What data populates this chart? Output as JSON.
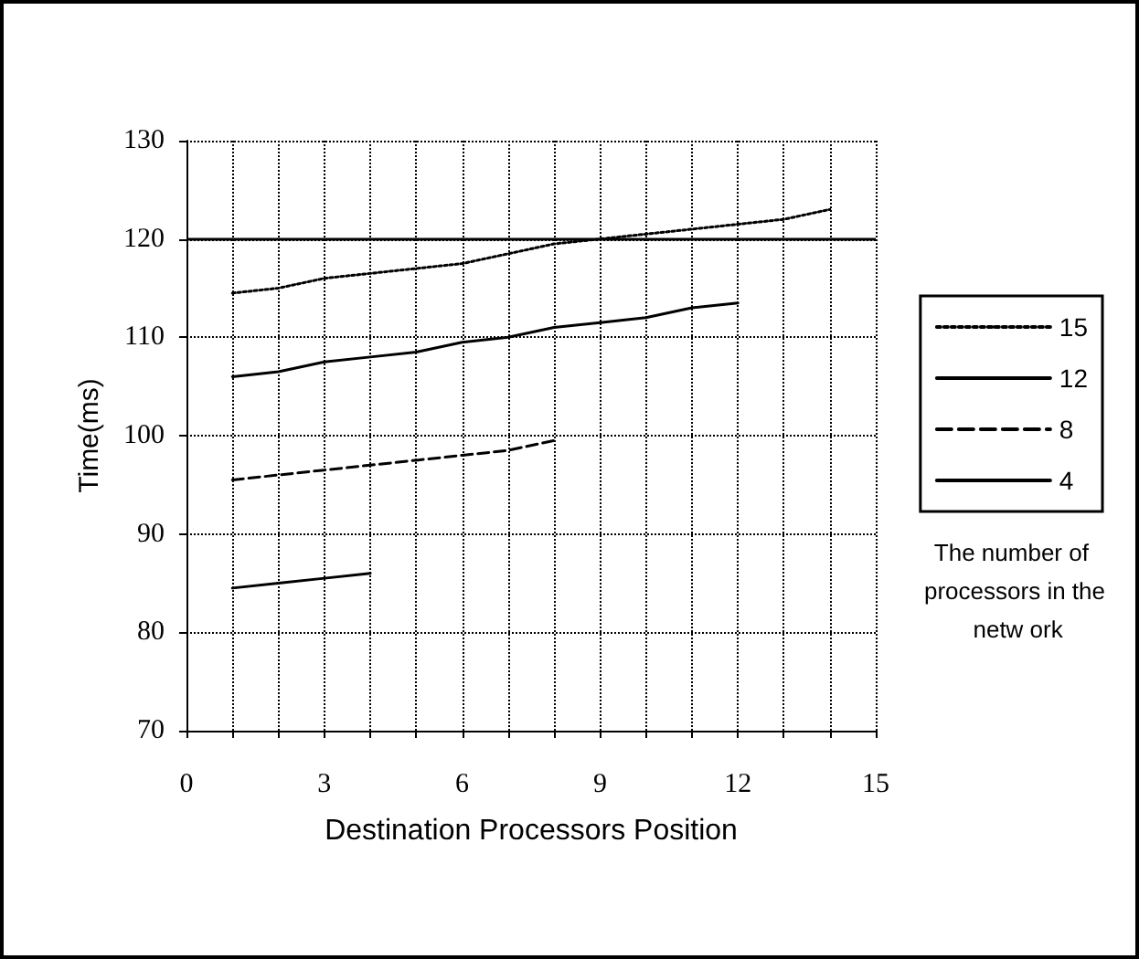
{
  "chart_data": {
    "type": "line",
    "xlabel": "Destination Processors Position",
    "ylabel": "Time(ms)",
    "legend_title": "The number of processors in the netw ork",
    "xlim": [
      0,
      15
    ],
    "xticks": [
      0,
      {
        "value": 1,
        "label": null
      },
      {
        "value": 2,
        "label": null
      },
      3,
      {
        "value": 4,
        "label": null
      },
      {
        "value": 5,
        "label": null
      },
      6,
      {
        "value": 7,
        "label": null
      },
      {
        "value": 8,
        "label": null
      },
      9,
      {
        "value": 10,
        "label": null
      },
      {
        "value": 11,
        "label": null
      },
      12,
      {
        "value": 13,
        "label": null
      },
      {
        "value": 14,
        "label": null
      },
      15
    ],
    "ylim": [
      70,
      130
    ],
    "yticks": [
      70,
      80,
      90,
      100,
      110,
      120,
      130
    ],
    "grid": true,
    "legend": "right",
    "marker": "none",
    "ref_lines": [
      {
        "axis": "y",
        "value": 120,
        "color": "#000000",
        "line_style": "solid"
      }
    ],
    "series": [
      {
        "name": "15",
        "color": "#000000",
        "line_style": "dotted",
        "x": [
          1,
          2,
          3,
          4,
          5,
          6,
          7,
          8,
          9,
          10,
          11,
          12,
          13,
          14
        ],
        "values": [
          114.5,
          115,
          116,
          116.5,
          117,
          117.5,
          118.5,
          119.5,
          120,
          120.5,
          121,
          121.5,
          122,
          123
        ]
      },
      {
        "name": "12",
        "color": "#000000",
        "line_style": "solid",
        "x": [
          1,
          2,
          3,
          4,
          5,
          6,
          7,
          8,
          9,
          10,
          11,
          12
        ],
        "values": [
          106,
          106.5,
          107.5,
          108,
          108.5,
          109.5,
          110,
          111,
          111.5,
          112,
          113,
          113.5
        ]
      },
      {
        "name": "8",
        "color": "#000000",
        "line_style": "dashed",
        "x": [
          1,
          2,
          3,
          4,
          5,
          6,
          7,
          8
        ],
        "values": [
          95.5,
          96,
          96.5,
          97,
          97.5,
          98,
          98.5,
          99.5
        ]
      },
      {
        "name": "4",
        "color": "#000000",
        "line_style": "solid",
        "x": [
          1,
          2,
          3,
          4
        ],
        "values": [
          84.5,
          85,
          85.5,
          86
        ]
      }
    ]
  }
}
